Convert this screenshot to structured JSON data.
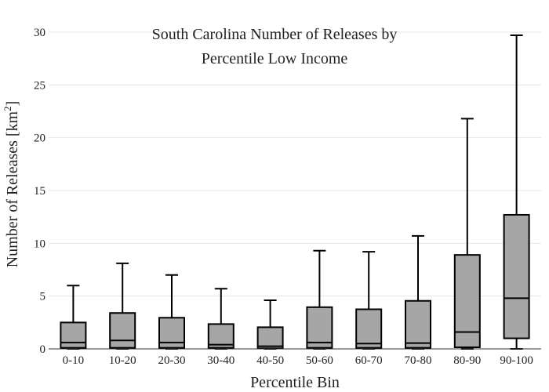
{
  "chart_data": {
    "type": "box",
    "title_lines": [
      "South Carolina Number of Releases by",
      "Percentile Low Income"
    ],
    "xlabel": "Percentile Bin",
    "ylabel_main": "Number of Releases  [km",
    "ylabel_sup": "2",
    "ylabel_close": "]",
    "ylim": [
      0,
      30
    ],
    "yticks": [
      0,
      5,
      10,
      15,
      20,
      25,
      30
    ],
    "grid": true,
    "categories": [
      "0-10",
      "10-20",
      "20-30",
      "30-40",
      "40-50",
      "50-60",
      "60-70",
      "70-80",
      "80-90",
      "90-100"
    ],
    "boxes": [
      {
        "min": 0.0,
        "q1": 0.1,
        "median": 0.6,
        "q3": 2.5,
        "max": 6.0
      },
      {
        "min": 0.0,
        "q1": 0.1,
        "median": 0.8,
        "q3": 3.4,
        "max": 8.1
      },
      {
        "min": 0.0,
        "q1": 0.1,
        "median": 0.6,
        "q3": 2.95,
        "max": 7.0
      },
      {
        "min": 0.0,
        "q1": 0.1,
        "median": 0.4,
        "q3": 2.35,
        "max": 5.7
      },
      {
        "min": 0.0,
        "q1": 0.05,
        "median": 0.25,
        "q3": 2.05,
        "max": 4.6
      },
      {
        "min": 0.0,
        "q1": 0.1,
        "median": 0.6,
        "q3": 3.95,
        "max": 9.3
      },
      {
        "min": 0.0,
        "q1": 0.1,
        "median": 0.5,
        "q3": 3.75,
        "max": 9.2
      },
      {
        "min": 0.0,
        "q1": 0.1,
        "median": 0.55,
        "q3": 4.55,
        "max": 10.7
      },
      {
        "min": 0.0,
        "q1": 0.15,
        "median": 1.6,
        "q3": 8.9,
        "max": 21.8
      },
      {
        "min": 0.0,
        "q1": 1.0,
        "median": 4.8,
        "q3": 12.7,
        "max": 29.7
      }
    ],
    "colors": {
      "box_fill": "#a6a6a6",
      "box_stroke": "#000000",
      "grid": "#e6e6e6"
    }
  }
}
